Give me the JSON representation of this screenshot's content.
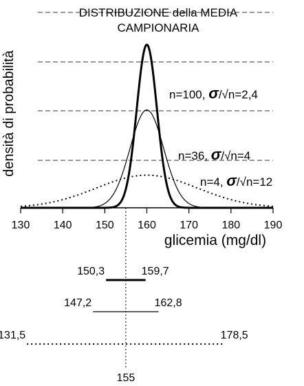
{
  "chart_data": {
    "type": "line",
    "title_line1": "DISTRIBUZIONE della MEDIA",
    "title_line2": "CAMPIONARIA",
    "xlabel": "glicemia (mg/dl)",
    "ylabel": "densità di probabilità",
    "xlim": [
      130,
      190
    ],
    "x_ticks": [
      "130",
      "140",
      "150",
      "160",
      "170",
      "180",
      "190"
    ],
    "mean": 160,
    "reference_value": 155,
    "reference_label": "155",
    "grid": "horizontal dashed",
    "series": [
      {
        "key": "n100",
        "label_prefix": "n=100,",
        "label_suffix": "=2,4",
        "sd": 2.4,
        "style": "thick solid",
        "interval": {
          "low": 150.3,
          "high": 159.7,
          "low_label": "150,3",
          "high_label": "159,7"
        }
      },
      {
        "key": "n36",
        "label_prefix": "n=36,",
        "label_suffix": "=4",
        "sd": 4,
        "style": "thin solid",
        "interval": {
          "low": 147.2,
          "high": 162.8,
          "low_label": "147,2",
          "high_label": "162,8"
        }
      },
      {
        "key": "n4",
        "label_prefix": "n=4,",
        "label_suffix": "=12",
        "sd": 12,
        "style": "dotted",
        "interval": {
          "low": 131.5,
          "high": 178.5,
          "low_label": "131,5",
          "high_label": "178,5"
        }
      }
    ],
    "sigma_symbol": "σ",
    "sqrt_n_text": "/√n"
  }
}
